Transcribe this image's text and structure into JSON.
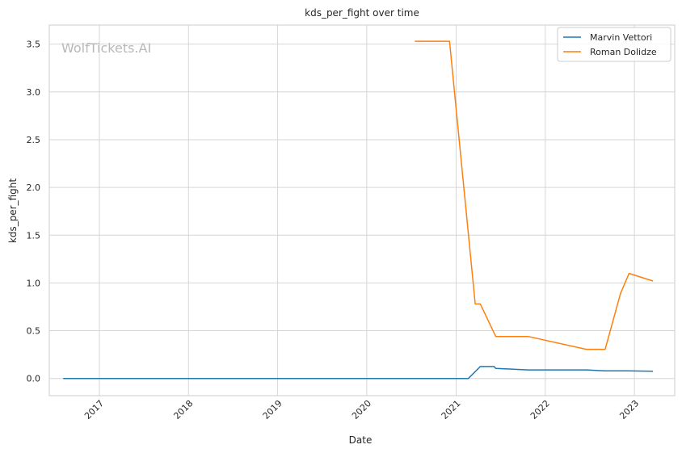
{
  "chart_data": {
    "type": "line",
    "title": "kds_per_fight over time",
    "xlabel": "Date",
    "ylabel": "kds_per_fight",
    "watermark": "WolfTickets.AI",
    "x_ticks": [
      "2017",
      "2018",
      "2019",
      "2020",
      "2021",
      "2022",
      "2023"
    ],
    "y_ticks": [
      "0.0",
      "0.5",
      "1.0",
      "1.5",
      "2.0",
      "2.5",
      "3.0",
      "3.5"
    ],
    "xlim": [
      "2016-06-10",
      "2023-06-15"
    ],
    "ylim": [
      -0.18,
      3.7
    ],
    "grid": true,
    "legend_position": "top-right",
    "series": [
      {
        "name": "Marvin Vettori",
        "color": "#1f77b4",
        "points": [
          [
            "2016-08-06",
            0.0
          ],
          [
            "2017-04-08",
            0.0
          ],
          [
            "2018-04-14",
            0.0
          ],
          [
            "2019-04-13",
            0.0
          ],
          [
            "2020-06-13",
            0.0
          ],
          [
            "2020-10-24",
            0.0
          ],
          [
            "2021-02-20",
            0.0
          ],
          [
            "2021-04-10",
            0.125
          ],
          [
            "2021-06-05",
            0.125
          ],
          [
            "2021-06-12",
            0.105
          ],
          [
            "2021-10-23",
            0.09
          ],
          [
            "2022-06-18",
            0.09
          ],
          [
            "2022-09-01",
            0.08
          ],
          [
            "2022-12-03",
            0.08
          ],
          [
            "2023-03-18",
            0.075
          ]
        ]
      },
      {
        "name": "Roman Dolidze",
        "color": "#ff7f0e",
        "points": [
          [
            "2020-07-16",
            3.53
          ],
          [
            "2020-12-05",
            3.53
          ],
          [
            "2021-03-20",
            0.78
          ],
          [
            "2021-04-10",
            0.78
          ],
          [
            "2021-06-12",
            0.44
          ],
          [
            "2021-10-23",
            0.44
          ],
          [
            "2022-06-18",
            0.305
          ],
          [
            "2022-09-03",
            0.305
          ],
          [
            "2022-11-05",
            0.89
          ],
          [
            "2022-12-10",
            1.1
          ],
          [
            "2023-03-18",
            1.02
          ]
        ]
      }
    ]
  }
}
